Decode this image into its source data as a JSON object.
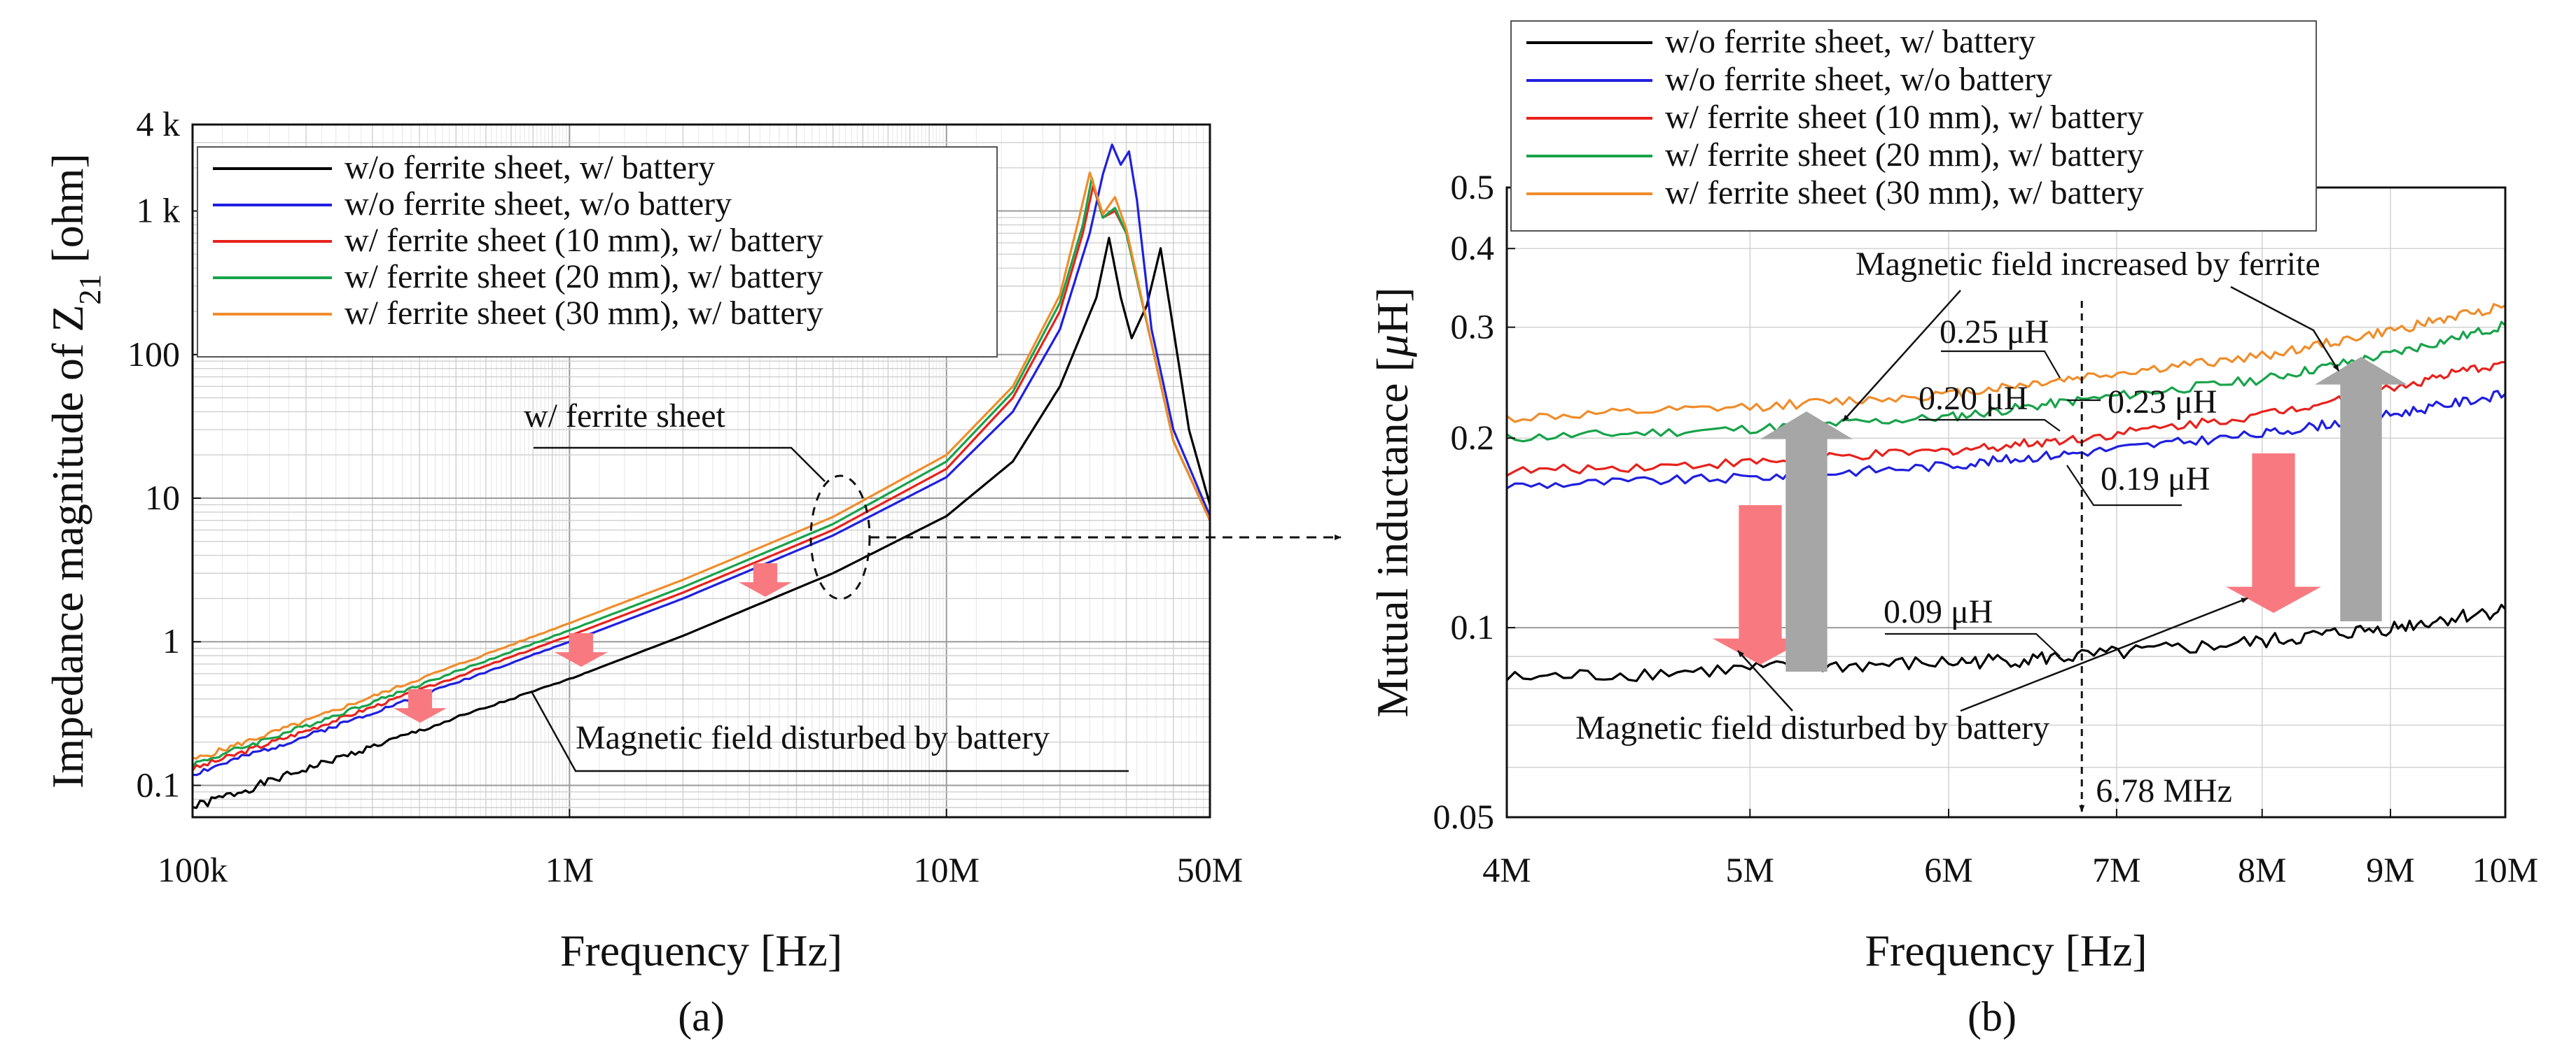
{
  "chart_data": [
    {
      "panel": "(a)",
      "type": "line",
      "xlabel": "Frequency [Hz]",
      "ylabel_main": "Impedance magnitude of Z",
      "ylabel_sub": "21",
      "ylabel_unit": " [ohm]",
      "xscale": "log",
      "yscale": "log",
      "xlim": [
        100000,
        50000000
      ],
      "ylim": [
        0.06,
        4000
      ],
      "grid": true,
      "legend_position": "top-left",
      "x_ticks": [
        {
          "value": 100000,
          "label": "100k"
        },
        {
          "value": 1000000,
          "label": "1M"
        },
        {
          "value": 10000000,
          "label": "10M"
        },
        {
          "value": 50000000,
          "label": "50M"
        }
      ],
      "y_ticks": [
        {
          "value": 0.1,
          "label": "0.1"
        },
        {
          "value": 1,
          "label": "1"
        },
        {
          "value": 10,
          "label": "10"
        },
        {
          "value": 100,
          "label": "100"
        },
        {
          "value": 1000,
          "label": "1 k"
        },
        {
          "value": 4000,
          "label": "4 k"
        }
      ],
      "series": [
        {
          "name": "w/o ferrite sheet, w/ battery",
          "color": "#000000",
          "x": [
            100000,
            200000,
            400000,
            1000000,
            2000000,
            5000000,
            10000000,
            15000000,
            20000000,
            25000000,
            27000000,
            29000000,
            31000000,
            34000000,
            37000000,
            40000000,
            44000000,
            50000000
          ],
          "y": [
            0.07,
            0.13,
            0.24,
            0.55,
            1.1,
            3.0,
            7.5,
            18,
            60,
            250,
            650,
            250,
            130,
            220,
            550,
            150,
            30,
            9
          ]
        },
        {
          "name": "w/o ferrite sheet, w/o battery",
          "color": "#1f1fe0",
          "x": [
            100000,
            200000,
            400000,
            1000000,
            2000000,
            5000000,
            10000000,
            15000000,
            20000000,
            24000000,
            26000000,
            27500000,
            29000000,
            30500000,
            32000000,
            35000000,
            40000000,
            50000000
          ],
          "y": [
            0.12,
            0.22,
            0.42,
            1.0,
            2.0,
            5.5,
            14,
            40,
            150,
            700,
            1800,
            2900,
            2100,
            2600,
            1200,
            150,
            30,
            7.5
          ]
        },
        {
          "name": "w/ ferrite sheet (10 mm), w/ battery",
          "color": "#e8211c",
          "x": [
            100000,
            200000,
            400000,
            1000000,
            2000000,
            5000000,
            10000000,
            15000000,
            20000000,
            23000000,
            24500000,
            26000000,
            28000000,
            30000000,
            35000000,
            40000000,
            50000000
          ],
          "y": [
            0.13,
            0.24,
            0.46,
            1.1,
            2.2,
            6.0,
            16,
            50,
            200,
            700,
            1500,
            900,
            1000,
            700,
            120,
            25,
            7
          ]
        },
        {
          "name": "w/ ferrite sheet (20 mm), w/ battery",
          "color": "#17a34a",
          "x": [
            100000,
            200000,
            400000,
            1000000,
            2000000,
            5000000,
            10000000,
            15000000,
            20000000,
            23000000,
            24300000,
            26000000,
            28000000,
            30000000,
            35000000,
            40000000,
            50000000
          ],
          "y": [
            0.14,
            0.26,
            0.5,
            1.2,
            2.4,
            6.6,
            18,
            55,
            230,
            800,
            1700,
            900,
            1050,
            700,
            120,
            25,
            7
          ]
        },
        {
          "name": "w/ ferrite sheet (30 mm), w/ battery",
          "color": "#f08c2a",
          "x": [
            100000,
            200000,
            400000,
            1000000,
            2000000,
            5000000,
            10000000,
            15000000,
            20000000,
            22500000,
            24000000,
            26000000,
            28000000,
            30000000,
            35000000,
            40000000,
            50000000
          ],
          "y": [
            0.15,
            0.28,
            0.55,
            1.35,
            2.7,
            7.4,
            20,
            60,
            260,
            900,
            1850,
            950,
            1250,
            750,
            120,
            25,
            7
          ]
        }
      ],
      "annotations": [
        {
          "text": "w/ ferrite sheet"
        },
        {
          "text": "Magnetic field disturbed by battery"
        }
      ]
    },
    {
      "panel": "(b)",
      "type": "line",
      "xlabel": "Frequency [Hz]",
      "ylabel_main": "Mutual inductance [",
      "ylabel_mu": "μ",
      "ylabel_unit": "H]",
      "xscale": "log",
      "yscale": "log",
      "xlim": [
        4000000,
        10000000
      ],
      "ylim": [
        0.05,
        0.5
      ],
      "grid": true,
      "legend_position": "top-left",
      "x_ticks": [
        {
          "value": 4000000,
          "label": "4M"
        },
        {
          "value": 5000000,
          "label": "5M"
        },
        {
          "value": 6000000,
          "label": "6M"
        },
        {
          "value": 7000000,
          "label": "7M"
        },
        {
          "value": 8000000,
          "label": "8M"
        },
        {
          "value": 9000000,
          "label": "9M"
        },
        {
          "value": 10000000,
          "label": "10M"
        }
      ],
      "y_ticks": [
        {
          "value": 0.05,
          "label": "0.05"
        },
        {
          "value": 0.1,
          "label": "0.1"
        },
        {
          "value": 0.2,
          "label": "0.2"
        },
        {
          "value": 0.3,
          "label": "0.3"
        },
        {
          "value": 0.4,
          "label": "0.4"
        },
        {
          "value": 0.5,
          "label": "0.5"
        }
      ],
      "series": [
        {
          "name": "w/o ferrite sheet, w/ battery",
          "color": "#000000",
          "x": [
            4000000,
            5000000,
            6000000,
            6780000,
            8000000,
            9000000,
            10000000
          ],
          "y": [
            0.083,
            0.086,
            0.088,
            0.09,
            0.095,
            0.1,
            0.107
          ]
        },
        {
          "name": "w/o ferrite sheet, w/o battery",
          "color": "#1f1fe0",
          "x": [
            4000000,
            5000000,
            6000000,
            6780000,
            8000000,
            9000000,
            10000000
          ],
          "y": [
            0.168,
            0.173,
            0.181,
            0.19,
            0.203,
            0.218,
            0.235
          ]
        },
        {
          "name": "w/ ferrite sheet (10 mm), w/ battery",
          "color": "#e8211c",
          "x": [
            4000000,
            5000000,
            6000000,
            6780000,
            8000000,
            9000000,
            10000000
          ],
          "y": [
            0.177,
            0.183,
            0.191,
            0.2,
            0.218,
            0.24,
            0.264
          ]
        },
        {
          "name": "w/ ferrite sheet (20 mm), w/ battery",
          "color": "#17a34a",
          "x": [
            4000000,
            5000000,
            6000000,
            6780000,
            8000000,
            9000000,
            10000000
          ],
          "y": [
            0.2,
            0.207,
            0.216,
            0.23,
            0.248,
            0.272,
            0.302
          ]
        },
        {
          "name": "w/ ferrite sheet (30 mm), w/ battery",
          "color": "#f08c2a",
          "x": [
            4000000,
            5000000,
            6000000,
            6780000,
            8000000,
            9000000,
            10000000
          ],
          "y": [
            0.215,
            0.224,
            0.235,
            0.25,
            0.27,
            0.296,
            0.325
          ]
        }
      ],
      "annotations": [
        {
          "text": "Magnetic field increased by ferrite"
        },
        {
          "text": "0.25 μH"
        },
        {
          "text": "0.20 μH"
        },
        {
          "text": "0.23 μH"
        },
        {
          "text": "0.19 μH"
        },
        {
          "text": "0.09 μH"
        },
        {
          "text": "Magnetic field disturbed by battery"
        },
        {
          "text": "6.78 MHz"
        }
      ]
    }
  ]
}
